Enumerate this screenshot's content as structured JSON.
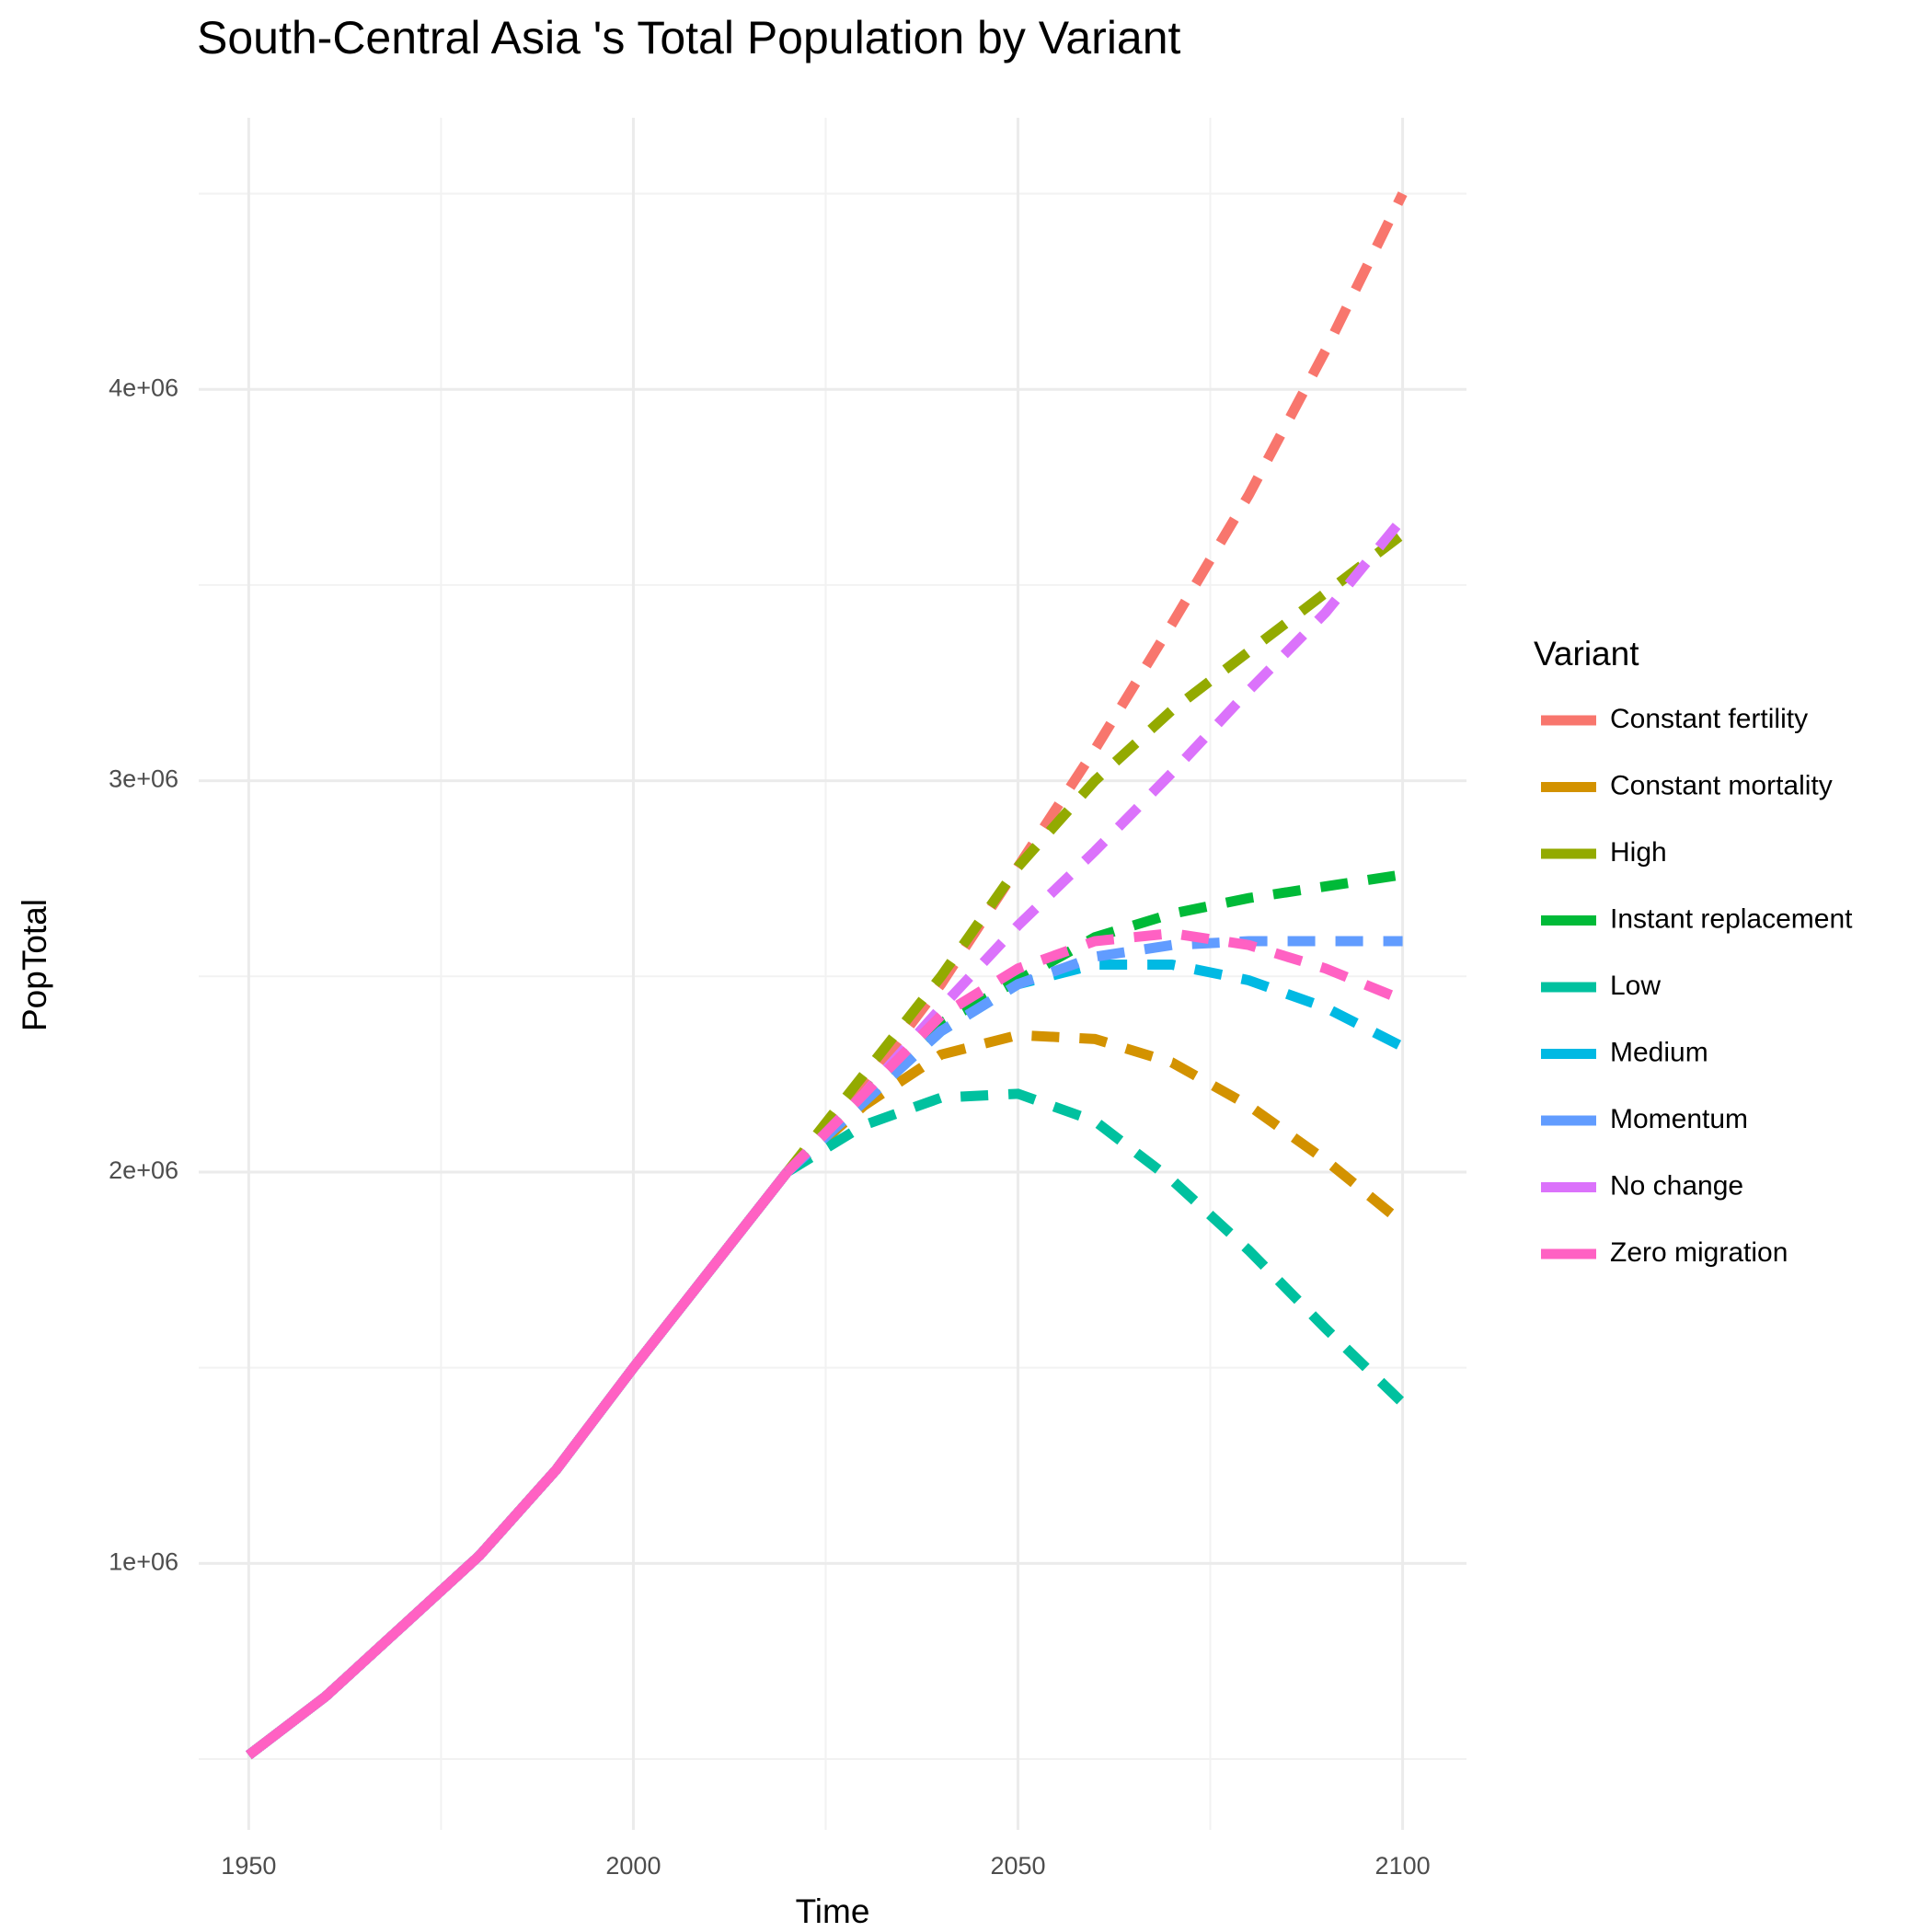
{
  "chart_data": {
    "type": "line",
    "title": "South-Central Asia 's Total Population by Variant",
    "x_label": "Time",
    "y_label": "PopTotal",
    "legend_title": "Variant",
    "x": [
      1950,
      1960,
      1970,
      1980,
      1990,
      2000,
      2010,
      2020,
      2030,
      2040,
      2050,
      2060,
      2070,
      2080,
      2090,
      2100
    ],
    "solid_until": 2020,
    "series": [
      {
        "name": "Constant fertility",
        "color": "#F8766D",
        "values": [
          510000,
          660000,
          840000,
          1020000,
          1240000,
          1500000,
          1750000,
          2000000,
          2220000,
          2480000,
          2780000,
          3080000,
          3400000,
          3730000,
          4100000,
          4500000
        ]
      },
      {
        "name": "Constant mortality",
        "color": "#D39200",
        "values": [
          510000,
          660000,
          840000,
          1020000,
          1240000,
          1500000,
          1750000,
          2000000,
          2170000,
          2300000,
          2350000,
          2340000,
          2280000,
          2170000,
          2030000,
          1870000
        ]
      },
      {
        "name": "High",
        "color": "#93AA00",
        "values": [
          510000,
          660000,
          840000,
          1020000,
          1240000,
          1500000,
          1750000,
          2000000,
          2250000,
          2500000,
          2780000,
          3000000,
          3180000,
          3330000,
          3480000,
          3630000
        ]
      },
      {
        "name": "Instant replacement",
        "color": "#00BA38",
        "values": [
          510000,
          660000,
          840000,
          1020000,
          1240000,
          1500000,
          1750000,
          2000000,
          2200000,
          2380000,
          2490000,
          2600000,
          2660000,
          2700000,
          2730000,
          2760000
        ]
      },
      {
        "name": "Low",
        "color": "#00C19F",
        "values": [
          510000,
          660000,
          840000,
          1020000,
          1240000,
          1500000,
          1750000,
          2000000,
          2120000,
          2190000,
          2200000,
          2130000,
          1980000,
          1800000,
          1600000,
          1410000
        ]
      },
      {
        "name": "Medium",
        "color": "#00B9E3",
        "values": [
          510000,
          660000,
          840000,
          1020000,
          1240000,
          1500000,
          1750000,
          2000000,
          2180000,
          2360000,
          2480000,
          2530000,
          2530000,
          2490000,
          2420000,
          2320000
        ]
      },
      {
        "name": "Momentum",
        "color": "#619CFF",
        "values": [
          510000,
          660000,
          840000,
          1020000,
          1240000,
          1500000,
          1750000,
          2000000,
          2180000,
          2360000,
          2480000,
          2550000,
          2580000,
          2590000,
          2590000,
          2590000
        ]
      },
      {
        "name": "No change",
        "color": "#DB72FB",
        "values": [
          510000,
          660000,
          840000,
          1020000,
          1240000,
          1500000,
          1750000,
          2000000,
          2200000,
          2420000,
          2630000,
          2820000,
          3020000,
          3230000,
          3430000,
          3670000
        ]
      },
      {
        "name": "Zero migration",
        "color": "#FF61C3",
        "values": [
          510000,
          660000,
          840000,
          1020000,
          1240000,
          1500000,
          1750000,
          2000000,
          2200000,
          2400000,
          2520000,
          2590000,
          2610000,
          2580000,
          2520000,
          2440000
        ]
      }
    ],
    "xlim": [
      1943.5,
      2108.3
    ],
    "ylim": [
      319000,
      4694000
    ],
    "xticks": [
      1950,
      2000,
      2050,
      2100
    ],
    "x_minor_ticks": [
      1975,
      2025,
      2075
    ],
    "yticks": [
      {
        "value": 1000000,
        "label": "1e+06"
      },
      {
        "value": 2000000,
        "label": "2e+06"
      },
      {
        "value": 3000000,
        "label": "3e+06"
      },
      {
        "value": 4000000,
        "label": "4e+06"
      }
    ],
    "y_minor_ticks": [
      500000,
      1500000,
      2500000,
      3500000,
      4500000
    ],
    "grid": true
  }
}
